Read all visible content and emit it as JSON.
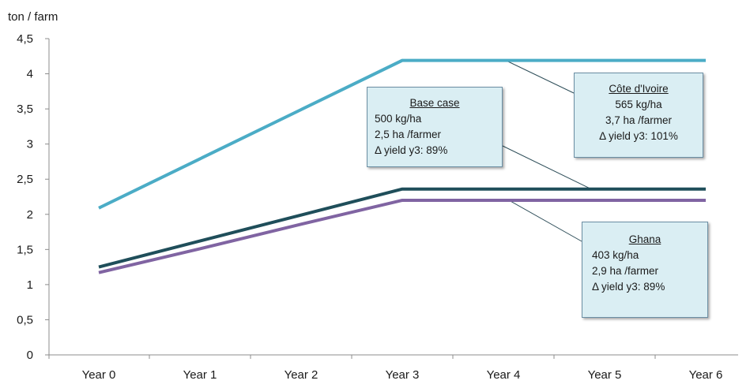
{
  "chart_data": {
    "type": "line",
    "ylabel": "ton / farm",
    "categories": [
      "Year 0",
      "Year 1",
      "Year 2",
      "Year 3",
      "Year 4",
      "Year 5",
      "Year 6"
    ],
    "y_ticks": [
      "0",
      "0,5",
      "1",
      "1,5",
      "2",
      "2,5",
      "3",
      "3,5",
      "4",
      "4,5"
    ],
    "ylim": [
      0,
      4.5
    ],
    "grid": false,
    "series": [
      {
        "color": "#4bacc6",
        "values": [
          2.09,
          2.79,
          3.49,
          4.19,
          4.19,
          4.19,
          4.19
        ]
      },
      {
        "color": "#1f4e5a",
        "values": [
          1.25,
          1.62,
          1.99,
          2.36,
          2.36,
          2.36,
          2.36
        ]
      },
      {
        "color": "#8064a2",
        "values": [
          1.17,
          1.51,
          1.86,
          2.2,
          2.2,
          2.2,
          2.2
        ]
      }
    ],
    "annotations": {
      "base": {
        "title": "Base case",
        "lines": [
          "500 kg/ha",
          "2,5 ha /farmer",
          "Δ yield y3: 89%"
        ]
      },
      "cote_divoire": {
        "title": "Côte d'Ivoire",
        "lines": [
          "565 kg/ha",
          "3,7 ha /farmer",
          "Δ yield y3: 101%"
        ]
      },
      "ghana": {
        "title": "Ghana",
        "lines": [
          "403 kg/ha",
          "2,9 ha /farmer",
          "Δ yield y3: 89%"
        ]
      }
    }
  }
}
